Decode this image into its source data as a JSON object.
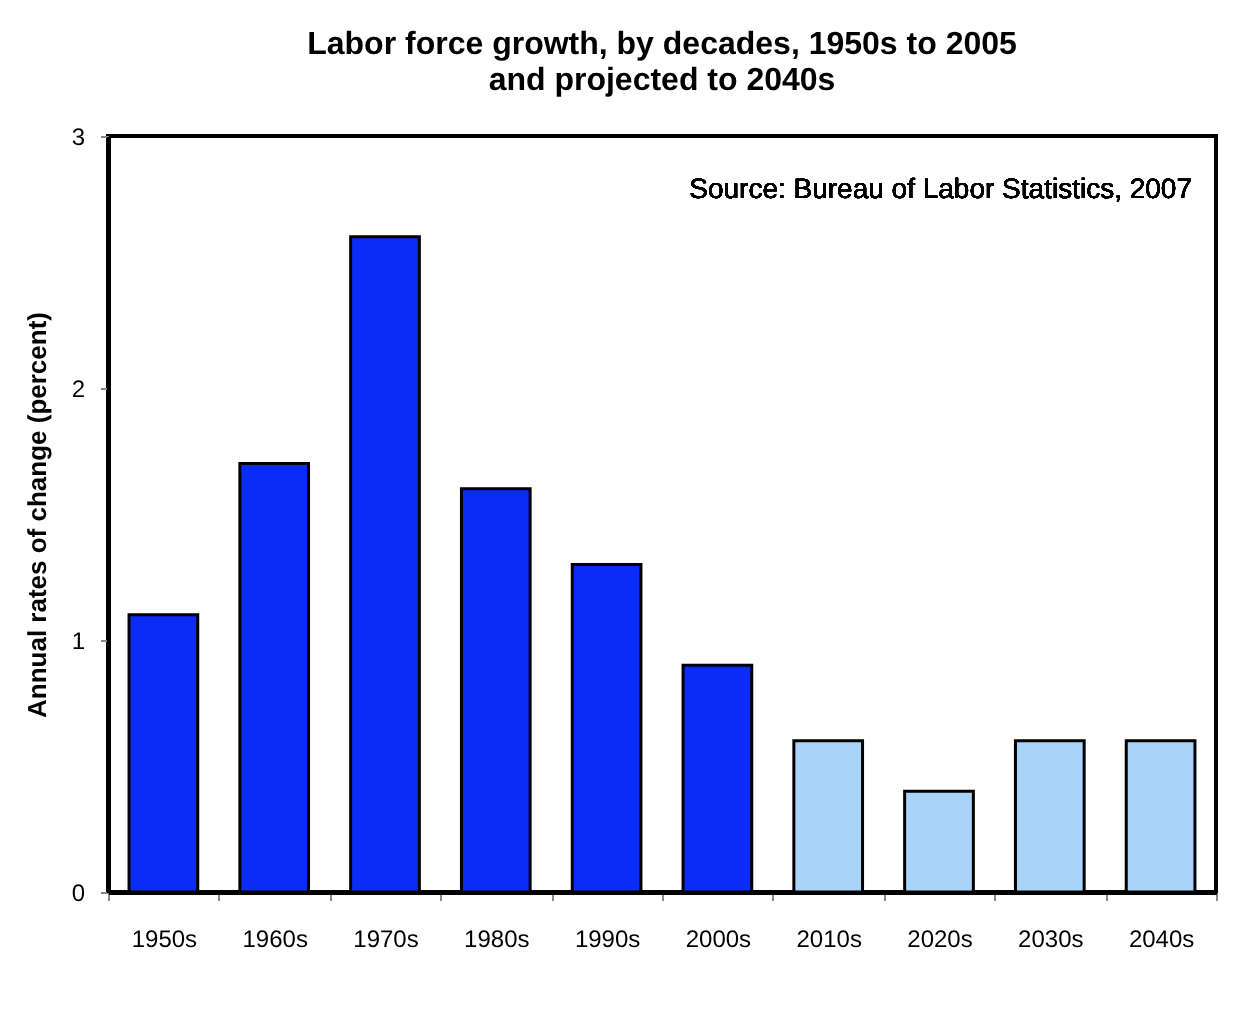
{
  "chart_data": {
    "type": "bar",
    "title": "Labor force growth, by decades, 1950s to 2005\nand projected to 2040s",
    "ylabel": "Annual rates of change (percent)",
    "categories": [
      "1950s",
      "1960s",
      "1970s",
      "1980s",
      "1990s",
      "2000s",
      "2010s",
      "2020s",
      "2030s",
      "2040s"
    ],
    "values": [
      1.1,
      1.7,
      2.6,
      1.6,
      1.3,
      0.9,
      0.6,
      0.4,
      0.6,
      0.6
    ],
    "colors": [
      "#0a2cf5",
      "#0a2cf5",
      "#0a2cf5",
      "#0a2cf5",
      "#0a2cf5",
      "#0a2cf5",
      "#a8d4fa",
      "#a8d4fa",
      "#a8d4fa",
      "#a8d4fa"
    ],
    "ylim": [
      0,
      3
    ],
    "yticks": [
      0,
      1,
      2,
      3
    ],
    "grid": false,
    "annotations": [
      "Source: Bureau of Labor Statistics, 2007"
    ]
  }
}
